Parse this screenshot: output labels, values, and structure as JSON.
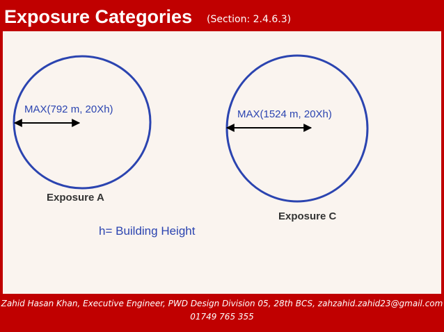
{
  "header": {
    "title": "Exposure Categories",
    "section": "(Section: 2.4.6.3)"
  },
  "diagram": {
    "circles": [
      {
        "radius_label": "MAX(792 m, 20Xh)",
        "label": "Exposure A"
      },
      {
        "radius_label": "MAX(1524 m, 20Xh)",
        "label": "Exposure C"
      }
    ],
    "note": "h= Building Height"
  },
  "footer": {
    "line1": "Zahid Hasan Khan, Executive Engineer, PWD Design Division 05, 28th BCS, zahzahid.zahid23@gmail.com",
    "line2": "01749 765 355"
  }
}
